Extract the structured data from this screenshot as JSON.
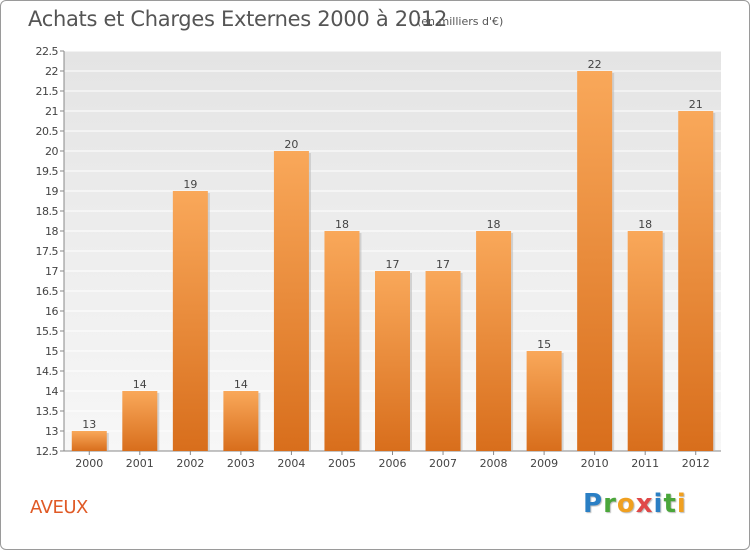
{
  "header": {
    "title": "Achats et Charges Externes 2000 à 2012",
    "subtitle": "(en milliers d'€)"
  },
  "footer": {
    "location": "AVEUX",
    "logo_text": "Proxiti"
  },
  "colors": {
    "bar_light": "#f9a85a",
    "bar_dark": "#d86e1c",
    "location_text": "#e05a26"
  },
  "chart_data": {
    "type": "bar",
    "title": "Achats et Charges Externes 2000 à 2012",
    "subtitle": "(en milliers d'€)",
    "xlabel": "",
    "ylabel": "",
    "categories": [
      "2000",
      "2001",
      "2002",
      "2003",
      "2004",
      "2005",
      "2006",
      "2007",
      "2008",
      "2009",
      "2010",
      "2011",
      "2012"
    ],
    "values": [
      13,
      14,
      19,
      14,
      20,
      18,
      17,
      17,
      18,
      15,
      22,
      18,
      21
    ],
    "ylim": [
      12.5,
      22.5
    ],
    "yticks": [
      12.5,
      13,
      13.5,
      14,
      14.5,
      15,
      15.5,
      16,
      16.5,
      17,
      17.5,
      18,
      18.5,
      19,
      19.5,
      20,
      20.5,
      21,
      21.5,
      22,
      22.5
    ],
    "grid": true,
    "legend": "none"
  }
}
